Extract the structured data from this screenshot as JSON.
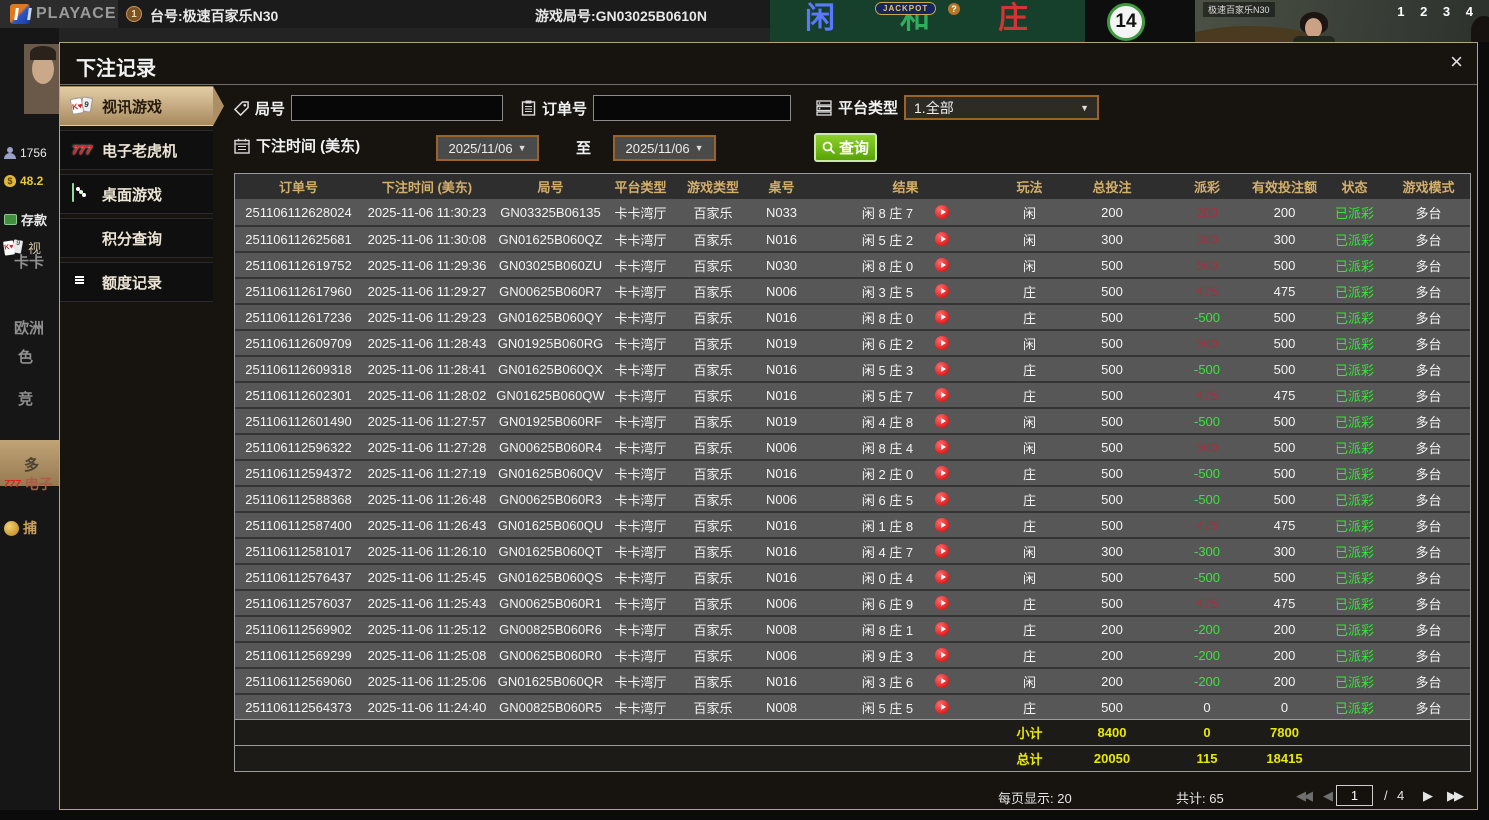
{
  "colors": {
    "payout_win": "#a82e3e",
    "payout_loss": "#3fe23f",
    "status_paid": "#35e635",
    "summary": "#e9e900",
    "header_gold": "#d4af6a",
    "tab_active": "#c8ab7e",
    "search_green": "#6fbe18"
  },
  "background": {
    "brand": "PLAYACE",
    "badge": "1",
    "table_label": "台号:极速百家乐N30",
    "round_label": "游戏局号:GN03025B0610N",
    "bet_player": "闲",
    "bet_tie": "和",
    "bet_banker": "庄",
    "jackpot": "JACKPOT",
    "jackpot_q": "?",
    "timer": "14",
    "video_label": "极速百家乐N30",
    "video_numbers": "1 2 3 4",
    "bead_colors": [
      "#8a8a8a",
      "#c03434",
      "#3a58c8",
      "#c03434",
      "#3a58c8",
      "#c03434",
      "#3a58c8",
      "#2f9e44",
      "#3a58c8",
      "#c03434",
      "#3a58c8",
      "#c03434",
      "#3a58c8",
      "#2f9e44",
      "#3a58c8"
    ],
    "sidebar": {
      "user_id": "1756",
      "balance": "48.2",
      "deposit": "存款",
      "video_partial": "视",
      "items": [
        "卡卡",
        "欧洲",
        "色",
        "竞",
        "多",
        "电子",
        "捕"
      ]
    }
  },
  "modal": {
    "title": "下注记录",
    "close": "×",
    "tabs": [
      {
        "label": "视讯游戏",
        "active": true
      },
      {
        "label": "电子老虎机",
        "active": false
      },
      {
        "label": "桌面游戏",
        "active": false
      },
      {
        "label": "积分查询",
        "active": false
      },
      {
        "label": "额度记录",
        "active": false
      }
    ],
    "filters": {
      "round_label": "局号",
      "round_value": "",
      "order_label": "订单号",
      "order_value": "",
      "platform_label": "平台类型",
      "platform_value": "1.全部",
      "time_label": "下注时间 (美东)",
      "date_from": "2025/11/06",
      "to_label": "至",
      "date_to": "2025/11/06",
      "search_label": "查询"
    },
    "table": {
      "columns": [
        "订单号",
        "下注时间 (美东)",
        "局号",
        "平台类型",
        "游戏类型",
        "桌号",
        "结果",
        "玩法",
        "总投注",
        "派彩",
        "有效投注额",
        "状态",
        "游戏模式"
      ],
      "rows": [
        {
          "order_no": "251106112628024",
          "bet_time": "2025-11-06 11:30:23",
          "round_no": "GN03325B06135",
          "platform": "卡卡湾厅",
          "game_type": "百家乐",
          "table_no": "N033",
          "result": "闲 8 庄 7",
          "play": "闲",
          "total_bet": "200",
          "payout": "200",
          "payout_color": "win",
          "valid_bet": "200",
          "status": "已派彩",
          "mode": "多台"
        },
        {
          "order_no": "251106112625681",
          "bet_time": "2025-11-06 11:30:08",
          "round_no": "GN01625B060QZ",
          "platform": "卡卡湾厅",
          "game_type": "百家乐",
          "table_no": "N016",
          "result": "闲 5 庄 2",
          "play": "闲",
          "total_bet": "300",
          "payout": "300",
          "payout_color": "win",
          "valid_bet": "300",
          "status": "已派彩",
          "mode": "多台"
        },
        {
          "order_no": "251106112619752",
          "bet_time": "2025-11-06 11:29:36",
          "round_no": "GN03025B060ZU",
          "platform": "卡卡湾厅",
          "game_type": "百家乐",
          "table_no": "N030",
          "result": "闲 8 庄 0",
          "play": "闲",
          "total_bet": "500",
          "payout": "500",
          "payout_color": "win",
          "valid_bet": "500",
          "status": "已派彩",
          "mode": "多台"
        },
        {
          "order_no": "251106112617960",
          "bet_time": "2025-11-06 11:29:27",
          "round_no": "GN00625B060R7",
          "platform": "卡卡湾厅",
          "game_type": "百家乐",
          "table_no": "N006",
          "result": "闲 3 庄 5",
          "play": "庄",
          "total_bet": "500",
          "payout": "475",
          "payout_color": "win",
          "valid_bet": "475",
          "status": "已派彩",
          "mode": "多台"
        },
        {
          "order_no": "251106112617236",
          "bet_time": "2025-11-06 11:29:23",
          "round_no": "GN01625B060QY",
          "platform": "卡卡湾厅",
          "game_type": "百家乐",
          "table_no": "N016",
          "result": "闲 8 庄 0",
          "play": "庄",
          "total_bet": "500",
          "payout": "-500",
          "payout_color": "loss",
          "valid_bet": "500",
          "status": "已派彩",
          "mode": "多台"
        },
        {
          "order_no": "251106112609709",
          "bet_time": "2025-11-06 11:28:43",
          "round_no": "GN01925B060RG",
          "platform": "卡卡湾厅",
          "game_type": "百家乐",
          "table_no": "N019",
          "result": "闲 6 庄 2",
          "play": "闲",
          "total_bet": "500",
          "payout": "500",
          "payout_color": "win",
          "valid_bet": "500",
          "status": "已派彩",
          "mode": "多台"
        },
        {
          "order_no": "251106112609318",
          "bet_time": "2025-11-06 11:28:41",
          "round_no": "GN01625B060QX",
          "platform": "卡卡湾厅",
          "game_type": "百家乐",
          "table_no": "N016",
          "result": "闲 5 庄 3",
          "play": "庄",
          "total_bet": "500",
          "payout": "-500",
          "payout_color": "loss",
          "valid_bet": "500",
          "status": "已派彩",
          "mode": "多台"
        },
        {
          "order_no": "251106112602301",
          "bet_time": "2025-11-06 11:28:02",
          "round_no": "GN01625B060QW",
          "platform": "卡卡湾厅",
          "game_type": "百家乐",
          "table_no": "N016",
          "result": "闲 5 庄 7",
          "play": "庄",
          "total_bet": "500",
          "payout": "475",
          "payout_color": "win",
          "valid_bet": "475",
          "status": "已派彩",
          "mode": "多台"
        },
        {
          "order_no": "251106112601490",
          "bet_time": "2025-11-06 11:27:57",
          "round_no": "GN01925B060RF",
          "platform": "卡卡湾厅",
          "game_type": "百家乐",
          "table_no": "N019",
          "result": "闲 4 庄 8",
          "play": "闲",
          "total_bet": "500",
          "payout": "-500",
          "payout_color": "loss",
          "valid_bet": "500",
          "status": "已派彩",
          "mode": "多台"
        },
        {
          "order_no": "251106112596322",
          "bet_time": "2025-11-06 11:27:28",
          "round_no": "GN00625B060R4",
          "platform": "卡卡湾厅",
          "game_type": "百家乐",
          "table_no": "N006",
          "result": "闲 8 庄 4",
          "play": "闲",
          "total_bet": "500",
          "payout": "500",
          "payout_color": "win",
          "valid_bet": "500",
          "status": "已派彩",
          "mode": "多台"
        },
        {
          "order_no": "251106112594372",
          "bet_time": "2025-11-06 11:27:19",
          "round_no": "GN01625B060QV",
          "platform": "卡卡湾厅",
          "game_type": "百家乐",
          "table_no": "N016",
          "result": "闲 2 庄 0",
          "play": "庄",
          "total_bet": "500",
          "payout": "-500",
          "payout_color": "loss",
          "valid_bet": "500",
          "status": "已派彩",
          "mode": "多台"
        },
        {
          "order_no": "251106112588368",
          "bet_time": "2025-11-06 11:26:48",
          "round_no": "GN00625B060R3",
          "platform": "卡卡湾厅",
          "game_type": "百家乐",
          "table_no": "N006",
          "result": "闲 6 庄 5",
          "play": "庄",
          "total_bet": "500",
          "payout": "-500",
          "payout_color": "loss",
          "valid_bet": "500",
          "status": "已派彩",
          "mode": "多台"
        },
        {
          "order_no": "251106112587400",
          "bet_time": "2025-11-06 11:26:43",
          "round_no": "GN01625B060QU",
          "platform": "卡卡湾厅",
          "game_type": "百家乐",
          "table_no": "N016",
          "result": "闲 1 庄 8",
          "play": "庄",
          "total_bet": "500",
          "payout": "475",
          "payout_color": "win",
          "valid_bet": "475",
          "status": "已派彩",
          "mode": "多台"
        },
        {
          "order_no": "251106112581017",
          "bet_time": "2025-11-06 11:26:10",
          "round_no": "GN01625B060QT",
          "platform": "卡卡湾厅",
          "game_type": "百家乐",
          "table_no": "N016",
          "result": "闲 4 庄 7",
          "play": "闲",
          "total_bet": "300",
          "payout": "-300",
          "payout_color": "loss",
          "valid_bet": "300",
          "status": "已派彩",
          "mode": "多台"
        },
        {
          "order_no": "251106112576437",
          "bet_time": "2025-11-06 11:25:45",
          "round_no": "GN01625B060QS",
          "platform": "卡卡湾厅",
          "game_type": "百家乐",
          "table_no": "N016",
          "result": "闲 0 庄 4",
          "play": "闲",
          "total_bet": "500",
          "payout": "-500",
          "payout_color": "loss",
          "valid_bet": "500",
          "status": "已派彩",
          "mode": "多台"
        },
        {
          "order_no": "251106112576037",
          "bet_time": "2025-11-06 11:25:43",
          "round_no": "GN00625B060R1",
          "platform": "卡卡湾厅",
          "game_type": "百家乐",
          "table_no": "N006",
          "result": "闲 6 庄 9",
          "play": "庄",
          "total_bet": "500",
          "payout": "475",
          "payout_color": "win",
          "valid_bet": "475",
          "status": "已派彩",
          "mode": "多台"
        },
        {
          "order_no": "251106112569902",
          "bet_time": "2025-11-06 11:25:12",
          "round_no": "GN00825B060R6",
          "platform": "卡卡湾厅",
          "game_type": "百家乐",
          "table_no": "N008",
          "result": "闲 8 庄 1",
          "play": "庄",
          "total_bet": "200",
          "payout": "-200",
          "payout_color": "loss",
          "valid_bet": "200",
          "status": "已派彩",
          "mode": "多台"
        },
        {
          "order_no": "251106112569299",
          "bet_time": "2025-11-06 11:25:08",
          "round_no": "GN00625B060R0",
          "platform": "卡卡湾厅",
          "game_type": "百家乐",
          "table_no": "N006",
          "result": "闲 9 庄 3",
          "play": "庄",
          "total_bet": "200",
          "payout": "-200",
          "payout_color": "loss",
          "valid_bet": "200",
          "status": "已派彩",
          "mode": "多台"
        },
        {
          "order_no": "251106112569060",
          "bet_time": "2025-11-06 11:25:06",
          "round_no": "GN01625B060QR",
          "platform": "卡卡湾厅",
          "game_type": "百家乐",
          "table_no": "N016",
          "result": "闲 3 庄 6",
          "play": "闲",
          "total_bet": "200",
          "payout": "-200",
          "payout_color": "loss",
          "valid_bet": "200",
          "status": "已派彩",
          "mode": "多台"
        },
        {
          "order_no": "251106112564373",
          "bet_time": "2025-11-06 11:24:40",
          "round_no": "GN00825B060R5",
          "platform": "卡卡湾厅",
          "game_type": "百家乐",
          "table_no": "N008",
          "result": "闲 5 庄 5",
          "play": "庄",
          "total_bet": "500",
          "payout": "0",
          "payout_color": "zero",
          "valid_bet": "0",
          "status": "已派彩",
          "mode": "多台"
        }
      ],
      "subtotal": {
        "label": "小计",
        "total_bet": "8400",
        "payout": "0",
        "valid_bet": "7800"
      },
      "grand_total": {
        "label": "总计",
        "total_bet": "20050",
        "payout": "115",
        "valid_bet": "18415"
      }
    },
    "footer": {
      "per_page": "每页显示: 20",
      "total_count": "共计: 65",
      "page": "1",
      "page_sep": "/",
      "total_pages": "4",
      "first_icon": "◀◀",
      "prev_icon": "◀",
      "next_icon": "▶",
      "last_icon": "▶▶"
    }
  }
}
